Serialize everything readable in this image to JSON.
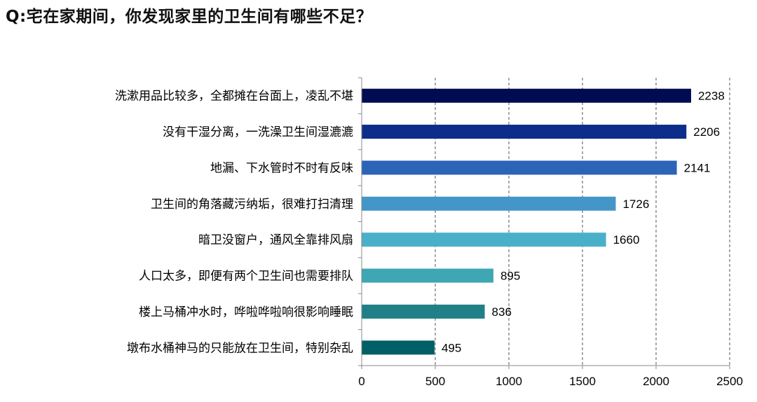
{
  "title": "Q:宅在家期间，你发现家里的卫生间有哪些不足？",
  "chart_data": {
    "type": "bar",
    "orientation": "horizontal",
    "title": "Q:宅在家期间，你发现家里的卫生间有哪些不足？",
    "xlabel": "",
    "ylabel": "",
    "categories": [
      "洗漱用品比较多，全都摊在台面上，凌乱不堪",
      "没有干湿分离，一洗澡卫生间湿漉漉",
      "地漏、下水管时不时有反味",
      "卫生间的角落藏污纳垢，很难打扫清理",
      "暗卫没窗户，通风全靠排风扇",
      "人口太多，即便有两个卫生间也需要排队",
      "楼上马桶冲水时，哗啦哗啦响很影响睡眠",
      "墩布水桶神马的只能放在卫生间，特别杂乱"
    ],
    "values": [
      2238,
      2206,
      2141,
      1726,
      1660,
      895,
      836,
      495
    ],
    "bar_colors": [
      "#000b52",
      "#0c2d8a",
      "#2c64b8",
      "#4496c8",
      "#4ab0c9",
      "#3fa7b4",
      "#1f8087",
      "#006066"
    ],
    "xlim": [
      0,
      2500
    ],
    "xticks": [
      0,
      500,
      1000,
      1500,
      2000,
      2500
    ],
    "grid": "vertical dashed",
    "legend": "none"
  }
}
